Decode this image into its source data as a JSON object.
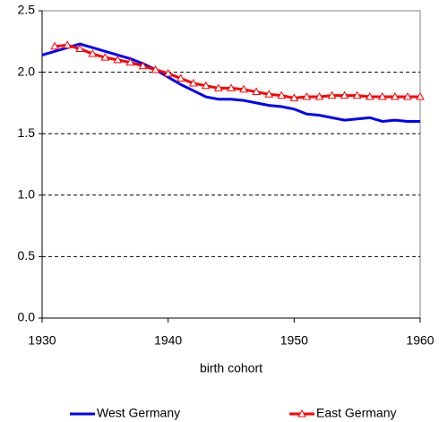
{
  "chart_data": {
    "type": "line",
    "x_label": "birth cohort",
    "x": [
      1930,
      1931,
      1932,
      1933,
      1934,
      1935,
      1936,
      1937,
      1938,
      1939,
      1940,
      1941,
      1942,
      1943,
      1944,
      1945,
      1946,
      1947,
      1948,
      1949,
      1950,
      1951,
      1952,
      1953,
      1954,
      1955,
      1956,
      1957,
      1958,
      1959,
      1960
    ],
    "series": [
      {
        "name": "West Germany",
        "color": "#0000ff",
        "marker": "none",
        "values": [
          2.14,
          2.17,
          2.2,
          2.23,
          2.2,
          2.17,
          2.14,
          2.11,
          2.07,
          2.02,
          1.96,
          1.9,
          1.85,
          1.8,
          1.78,
          1.78,
          1.77,
          1.75,
          1.73,
          1.72,
          1.7,
          1.66,
          1.65,
          1.63,
          1.61,
          1.62,
          1.63,
          1.6,
          1.61,
          1.6,
          1.6
        ]
      },
      {
        "name": "East Germany",
        "color": "#ff0000",
        "marker": "triangle",
        "values": [
          null,
          2.21,
          2.22,
          2.19,
          2.15,
          2.12,
          2.1,
          2.08,
          2.05,
          2.02,
          1.99,
          1.95,
          1.91,
          1.89,
          1.87,
          1.87,
          1.86,
          1.84,
          1.82,
          1.81,
          1.79,
          1.8,
          1.8,
          1.81,
          1.81,
          1.81,
          1.8,
          1.8,
          1.8,
          1.8,
          1.8
        ]
      }
    ],
    "xlim": [
      1930,
      1960
    ],
    "xticks": [
      1930,
      1940,
      1950,
      1960
    ],
    "ylim": [
      0,
      2.5
    ],
    "yticks": [
      {
        "value": 0,
        "label": "0.0"
      },
      0.5,
      {
        "value": 1,
        "label": "1.0"
      },
      1.5,
      {
        "value": 2,
        "label": "2.0"
      },
      2.5
    ],
    "grid": true,
    "legend": "bottom"
  }
}
